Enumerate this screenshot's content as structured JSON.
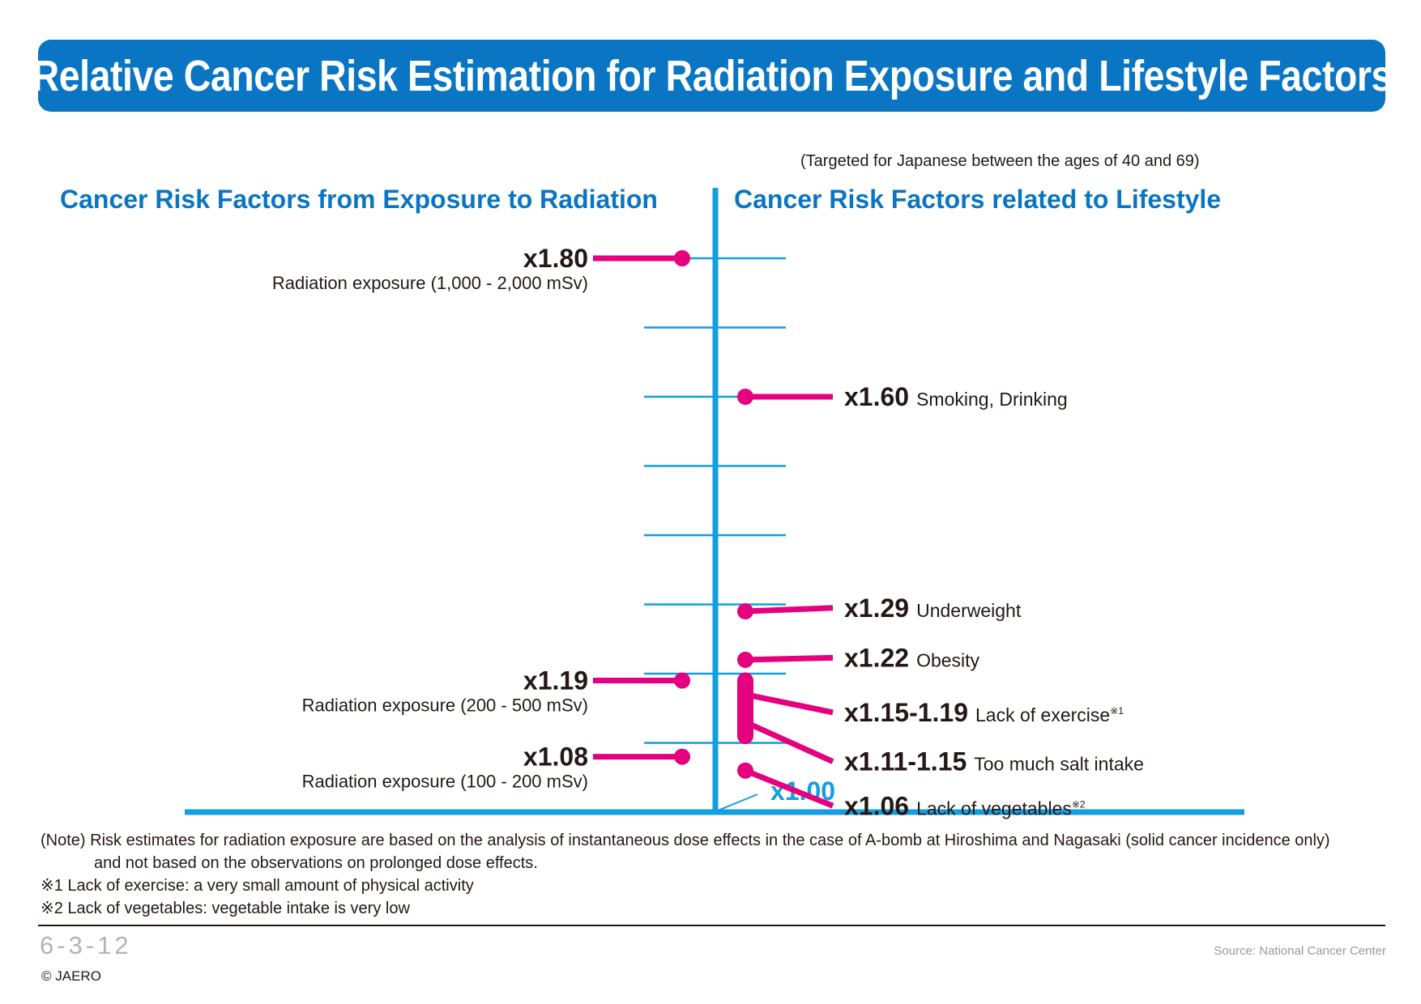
{
  "title": "Relative Cancer Risk Estimation for Radiation Exposure and Lifestyle Factors",
  "subtitle": "(Targeted for Japanese between the ages of 40 and 69)",
  "left_heading": "Cancer Risk Factors from Exposure to Radiation",
  "right_heading": "Cancer Risk Factors related to Lifestyle",
  "colors": {
    "accent": "#0a75c2",
    "axis": "#149ee0",
    "marker": "#e4007f",
    "text": "#231815"
  },
  "chart_data": {
    "type": "scatter",
    "baseline_label": "x1.00",
    "y_ticks": [
      1.1,
      1.2,
      1.3,
      1.4,
      1.5,
      1.6,
      1.7,
      1.8
    ],
    "ylim": [
      1.0,
      1.85
    ],
    "radiation": [
      {
        "value": 1.8,
        "label": "x1.80",
        "desc": "Radiation exposure (1,000 - 2,000 mSv)"
      },
      {
        "value": 1.19,
        "label": "x1.19",
        "desc": "Radiation exposure (200 - 500 mSv)"
      },
      {
        "value": 1.08,
        "label": "x1.08",
        "desc": "Radiation exposure (100 - 200 mSv)"
      }
    ],
    "lifestyle": [
      {
        "value": 1.6,
        "label": "x1.60",
        "desc": "Smoking, Drinking",
        "sup": ""
      },
      {
        "value": 1.29,
        "label": "x1.29",
        "desc": "Underweight",
        "sup": ""
      },
      {
        "value": 1.22,
        "label": "x1.22",
        "desc": "Obesity",
        "sup": ""
      },
      {
        "value": [
          1.15,
          1.19
        ],
        "label": "x1.15-1.19",
        "desc": "Lack of exercise",
        "sup": "※1"
      },
      {
        "value": [
          1.11,
          1.15
        ],
        "label": "x1.11-1.15",
        "desc": "Too much salt intake",
        "sup": ""
      },
      {
        "value": 1.06,
        "label": "x1.06",
        "desc": "Lack of vegetables",
        "sup": "※2"
      }
    ]
  },
  "notes": {
    "note_line1": "(Note) Risk estimates for radiation exposure are based on the analysis of instantaneous dose effects in the case of A-bomb at Hiroshima and Nagasaki (solid cancer incidence only)",
    "note_line2": "and not based on the observations on prolonged dose effects.",
    "footnote1": "※1  Lack of exercise: a very small amount of physical activity",
    "footnote2": "※2  Lack of vegetables: vegetable intake is very low"
  },
  "footer": {
    "page_id": "6-3-12",
    "copyright": "© JAERO",
    "source": "Source: National Cancer Center"
  }
}
